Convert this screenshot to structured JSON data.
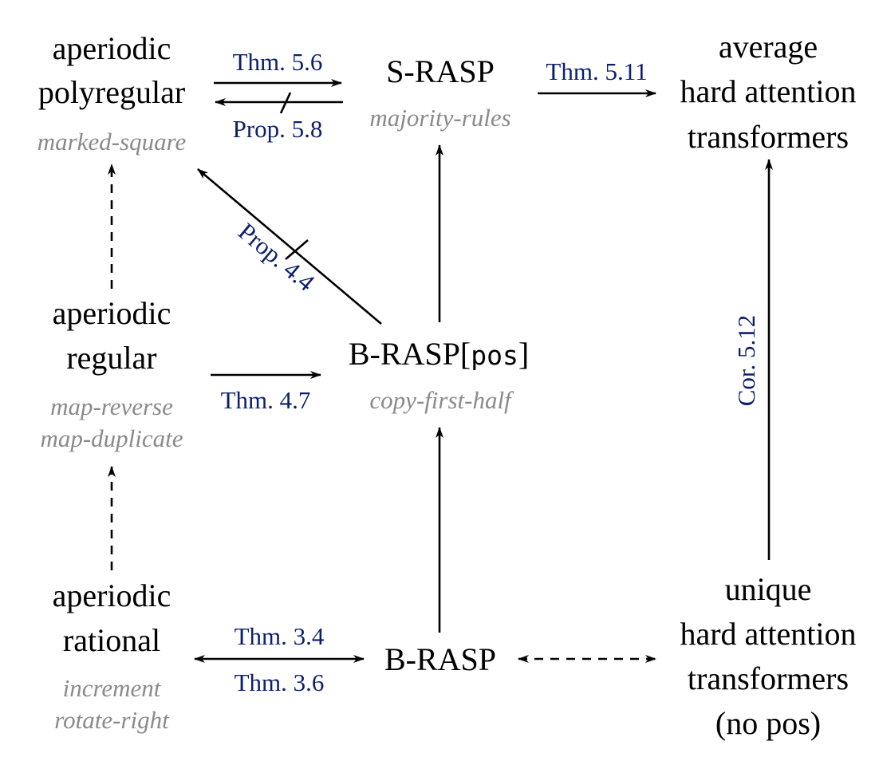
{
  "nodes": {
    "aperiodic_polyregular": {
      "lines": [
        "aperiodic",
        "polyregular"
      ],
      "example": [
        "marked-square"
      ]
    },
    "s_rasp": {
      "lines": [
        "S-RASP"
      ],
      "example": [
        "majority-rules"
      ]
    },
    "average_hat": {
      "lines": [
        "average",
        "hard attention",
        "transformers"
      ]
    },
    "aperiodic_regular": {
      "lines": [
        "aperiodic",
        "regular"
      ],
      "example": [
        "map-reverse",
        "map-duplicate"
      ]
    },
    "b_rasp_pos": {
      "prefix": "B-RASP[",
      "mono": "pos",
      "suffix": "]",
      "example": [
        "copy-first-half"
      ]
    },
    "aperiodic_rational": {
      "lines": [
        "aperiodic",
        "rational"
      ],
      "example": [
        "increment",
        "rotate-right"
      ]
    },
    "b_rasp": {
      "lines": [
        "B-RASP"
      ]
    },
    "unique_hat": {
      "lines": [
        "unique",
        "hard attention",
        "transformers",
        "(no pos)"
      ]
    }
  },
  "edges": {
    "thm_5_6": "Thm. 5.6",
    "prop_5_8": "Prop. 5.8",
    "thm_5_11": "Thm. 5.11",
    "prop_4_4": "Prop. 4.4",
    "thm_4_7": "Thm. 4.7",
    "cor_5_12": "Cor. 5.12",
    "thm_3_4": "Thm. 3.4",
    "thm_3_6": "Thm. 3.6"
  }
}
